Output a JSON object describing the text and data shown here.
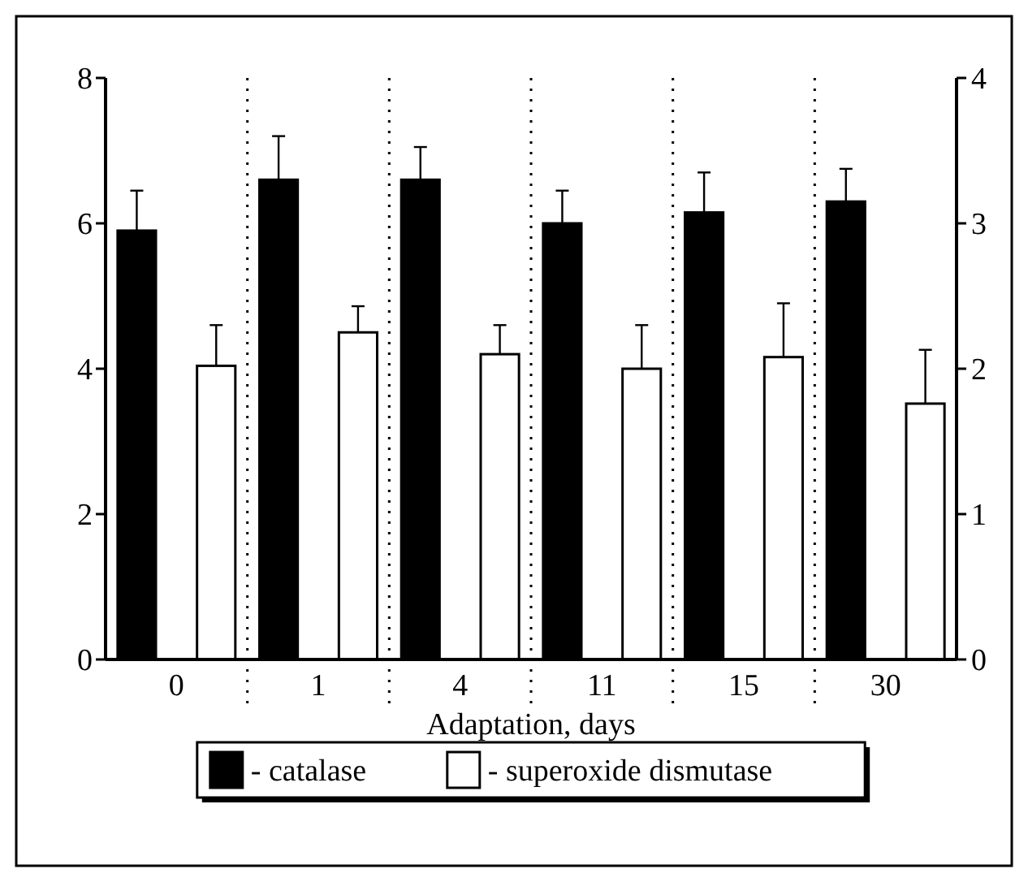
{
  "chart_data": {
    "type": "bar",
    "xlabel": "Adaptation, days",
    "categories": [
      "0",
      "1",
      "4",
      "11",
      "15",
      "30"
    ],
    "series": [
      {
        "name": "- catalase",
        "color": "#000000",
        "values": [
          5.9,
          6.6,
          6.6,
          6.0,
          6.15,
          6.3
        ],
        "errors": [
          0.55,
          0.6,
          0.45,
          0.45,
          0.55,
          0.45
        ]
      },
      {
        "name": "- superoxide dismutase",
        "color": "#ffffff",
        "axis": "y2",
        "values": [
          2.02,
          2.25,
          2.1,
          2.0,
          2.08,
          1.76
        ],
        "errors": [
          0.28,
          0.18,
          0.2,
          0.3,
          0.37,
          0.37
        ]
      }
    ],
    "ylim": [
      0,
      8
    ],
    "yticks": [
      0,
      2,
      4,
      6,
      8
    ],
    "y2lim": [
      0,
      4
    ],
    "y2ticks": [
      0,
      1,
      2,
      3,
      4
    ],
    "legend": "bottom",
    "grid": false
  }
}
